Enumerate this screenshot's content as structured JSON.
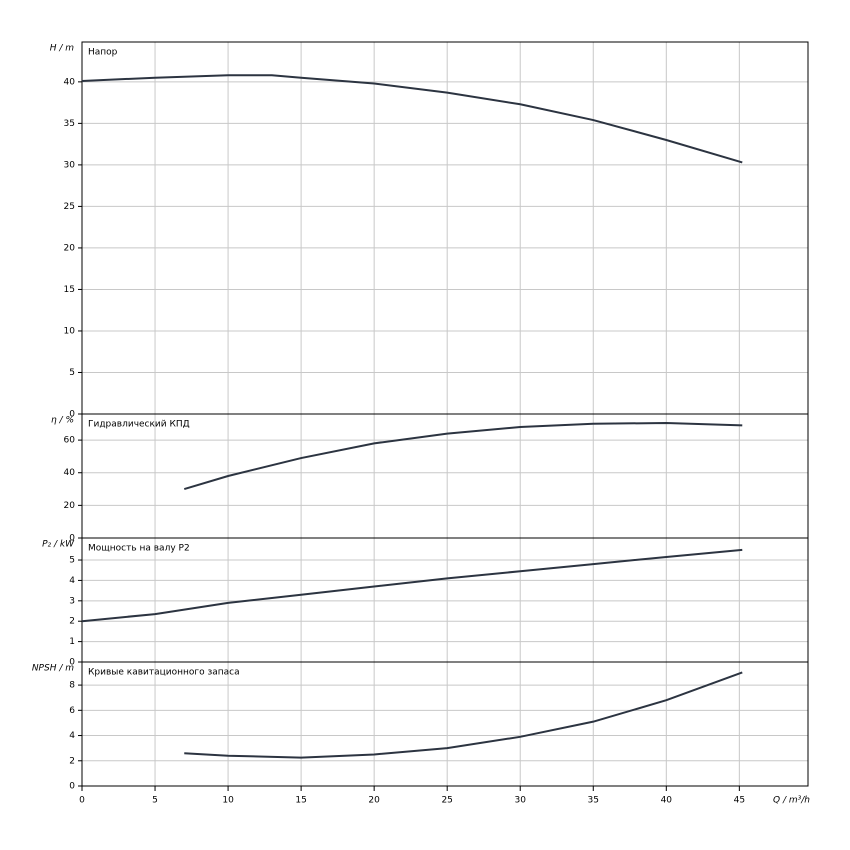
{
  "chart_data": [
    {
      "type": "line",
      "title": "Напор",
      "ylabel": "H / m",
      "x": [
        0,
        5,
        10,
        13,
        15,
        20,
        25,
        30,
        35,
        40,
        45.2
      ],
      "series": [
        {
          "color": "#2c3441",
          "values": [
            40.1,
            40.5,
            40.8,
            40.8,
            40.5,
            39.8,
            38.7,
            37.3,
            35.4,
            33.0,
            30.3
          ]
        }
      ],
      "xlim": [
        0,
        49.7
      ],
      "xticks": [
        0,
        5,
        10,
        15,
        20,
        25,
        30,
        35,
        40,
        45
      ],
      "ylim": [
        0,
        44.8
      ],
      "yticks": [
        0,
        5,
        10,
        15,
        20,
        25,
        30,
        35,
        40
      ],
      "grid": true
    },
    {
      "type": "line",
      "title": "Гидравлический КПД",
      "ylabel": "η / %",
      "x": [
        7,
        10,
        15,
        20,
        25,
        30,
        35,
        40,
        45.2
      ],
      "series": [
        {
          "color": "#2c3441",
          "values": [
            30,
            38,
            49,
            58,
            64,
            68,
            70,
            70.5,
            69
          ]
        }
      ],
      "xlim": [
        0,
        49.7
      ],
      "xticks": [
        0,
        5,
        10,
        15,
        20,
        25,
        30,
        35,
        40,
        45
      ],
      "ylim": [
        0,
        76
      ],
      "yticks": [
        0,
        20,
        40,
        60
      ],
      "grid": true
    },
    {
      "type": "line",
      "title": "Мощность на валу P2",
      "ylabel": "P₂ / kW",
      "x": [
        0,
        5,
        10,
        15,
        20,
        25,
        30,
        35,
        40,
        45.2
      ],
      "series": [
        {
          "color": "#2c3441",
          "values": [
            2.0,
            2.35,
            2.9,
            3.3,
            3.7,
            4.1,
            4.45,
            4.8,
            5.15,
            5.5
          ]
        }
      ],
      "xlim": [
        0,
        49.7
      ],
      "xticks": [
        0,
        5,
        10,
        15,
        20,
        25,
        30,
        35,
        40,
        45
      ],
      "ylim": [
        0,
        6.08
      ],
      "yticks": [
        0,
        1,
        2,
        3,
        4,
        5
      ],
      "grid": true
    },
    {
      "type": "line",
      "title": "Кривые кавитационного запаса",
      "ylabel": "NPSH / m",
      "xlabel": "Q / m³/h",
      "x": [
        7,
        10,
        15,
        20,
        25,
        30,
        35,
        40,
        45.2
      ],
      "series": [
        {
          "color": "#2c3441",
          "values": [
            2.6,
            2.4,
            2.25,
            2.5,
            3.0,
            3.9,
            5.1,
            6.8,
            9.0
          ]
        }
      ],
      "xlim": [
        0,
        49.7
      ],
      "xticks": [
        0,
        5,
        10,
        15,
        20,
        25,
        30,
        35,
        40,
        45
      ],
      "ylim": [
        0,
        9.83
      ],
      "yticks": [
        0,
        2,
        4,
        6,
        8
      ],
      "grid": true
    }
  ]
}
